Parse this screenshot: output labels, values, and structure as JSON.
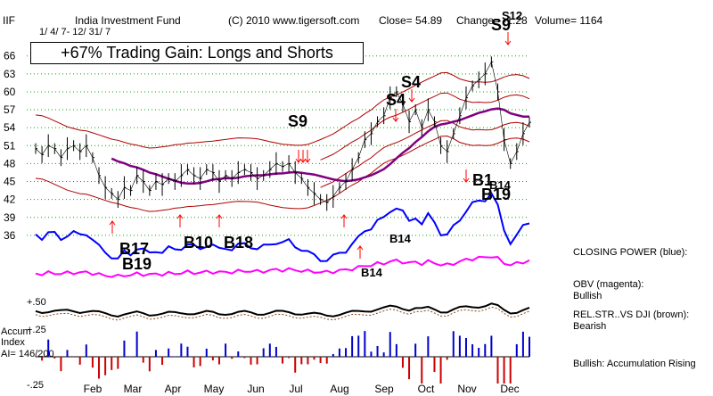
{
  "header": {
    "symbol": "IIF",
    "name": "India Investment Fund",
    "copyright": "(C) 2010 www.tigersoft.com",
    "close": "Close=  54.89",
    "change": "Change= -1.28",
    "volume": "Volume= 1164",
    "date_range": "1/ 4/ 7- 12/ 31/ 7"
  },
  "headline": "+67% Trading Gain: Longs and Shorts",
  "side_labels": {
    "closing_power": "CLOSING POWER (blue):",
    "obv_title": "OBV (magenta):",
    "obv_status": "Bullish",
    "relstr_title": "REL.STR..VS DJI (brown):",
    "relstr_status": "Bearish",
    "accum_status": "Bullish: Accumulation Rising"
  },
  "accum": {
    "title1": "Accum",
    "title2": "Index",
    "ai": "AI= 146/200",
    "plus25": "+.25",
    "minus25": "-.25",
    "plus50": "+.50"
  },
  "colors": {
    "price": "#000000",
    "bands": "#b00000",
    "ma": "#800080",
    "closing_power": "#0000ff",
    "obv": "#ff00ff",
    "relstr": "#8b4513",
    "arrows": "#ff0000",
    "accum_pos": "#0000cc",
    "accum_neg": "#cc0000",
    "grid": "#00aa00"
  },
  "chart_data": {
    "type": "line",
    "ylim": [
      33,
      67
    ],
    "y_ticks": [
      66,
      63,
      60,
      57,
      54,
      51,
      48,
      45,
      42,
      39,
      36
    ],
    "x_month_labels": [
      "Feb",
      "Mar",
      "Apr",
      "May",
      "Jun",
      "Jul",
      "Aug",
      "Sep",
      "Oct",
      "Nov",
      "Dec"
    ],
    "series": [
      {
        "values": [
          50.5,
          49.5,
          51,
          50.5,
          49,
          50.5,
          51,
          50,
          51,
          49,
          46,
          44,
          43,
          42,
          44,
          43.5,
          46,
          45,
          43.5,
          45,
          44.5,
          45.5,
          45,
          46,
          47,
          46,
          45.5,
          47,
          46.5,
          45,
          46,
          45.5,
          46.5,
          47,
          46.5,
          45.5,
          46,
          47,
          48,
          47.5,
          48,
          46.5,
          45.5,
          44,
          43,
          42,
          41.5,
          42.5,
          44,
          45,
          47,
          49,
          52,
          53,
          55,
          56,
          59,
          60,
          58,
          55,
          57,
          54,
          57,
          55,
          51,
          50,
          53,
          56,
          59,
          61,
          62,
          63,
          65,
          60,
          52,
          48,
          50,
          53,
          54.9
        ]
      }
    ],
    "signals": [
      {
        "label": "S9",
        "kind": "sell"
      },
      {
        "label": "S4",
        "kind": "sell"
      },
      {
        "label": "S4",
        "kind": "sell"
      },
      {
        "label": "S9",
        "kind": "sell"
      },
      {
        "label": "S12",
        "kind": "sell"
      },
      {
        "label": "B17",
        "kind": "buy"
      },
      {
        "label": "B19",
        "kind": "buy"
      },
      {
        "label": "B10",
        "kind": "buy"
      },
      {
        "label": "B18",
        "kind": "buy"
      },
      {
        "label": "B14",
        "kind": "buy"
      },
      {
        "label": "B14",
        "kind": "buy"
      },
      {
        "label": "B1",
        "kind": "buy"
      },
      {
        "label": "B14",
        "kind": "buy"
      },
      {
        "label": "B19",
        "kind": "buy"
      }
    ]
  }
}
